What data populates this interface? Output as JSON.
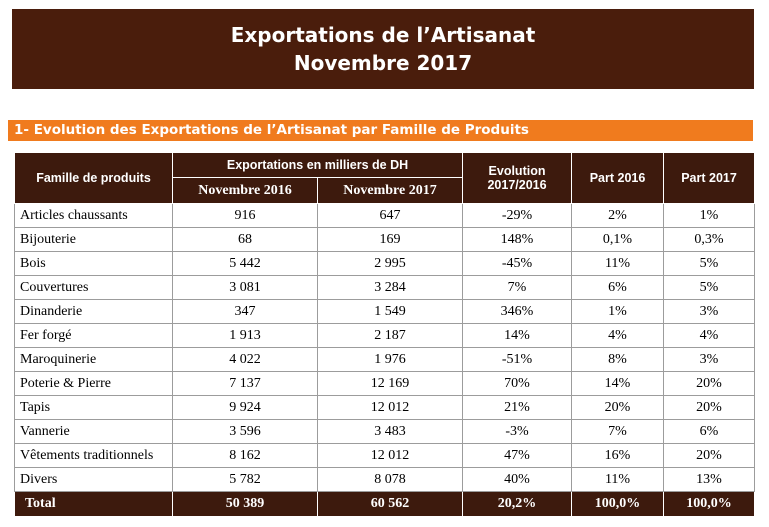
{
  "banner": {
    "line1": "Exportations de l’Artisanat",
    "line2": "Novembre 2017"
  },
  "section_title": "1- Evolution des Exportations de l’Artisanat par Famille  de Produits",
  "table": {
    "headers": {
      "famille": "Famille de produits",
      "exportations": "Exportations en milliers de DH",
      "nov2016": "Novembre 2016",
      "nov2017": "Novembre 2017",
      "evolution_line1": "Evolution",
      "evolution_line2": "2017/2016",
      "part2016": "Part  2016",
      "part2017": "Part  2017"
    },
    "rows": [
      {
        "famille": "Articles chaussants",
        "nov2016": "916",
        "nov2017": "647",
        "evolution": "-29%",
        "part2016": "2%",
        "part2017": "1%"
      },
      {
        "famille": "Bijouterie",
        "nov2016": "68",
        "nov2017": "169",
        "evolution": "148%",
        "part2016": "0,1%",
        "part2017": "0,3%"
      },
      {
        "famille": "Bois",
        "nov2016": "5 442",
        "nov2017": "2 995",
        "evolution": "-45%",
        "part2016": "11%",
        "part2017": "5%"
      },
      {
        "famille": "Couvertures",
        "nov2016": "3 081",
        "nov2017": "3 284",
        "evolution": "7%",
        "part2016": "6%",
        "part2017": "5%"
      },
      {
        "famille": "Dinanderie",
        "nov2016": "347",
        "nov2017": "1 549",
        "evolution": "346%",
        "part2016": "1%",
        "part2017": "3%"
      },
      {
        "famille": "Fer forgé",
        "nov2016": "1 913",
        "nov2017": "2 187",
        "evolution": "14%",
        "part2016": "4%",
        "part2017": "4%"
      },
      {
        "famille": "Maroquinerie",
        "nov2016": "4 022",
        "nov2017": "1 976",
        "evolution": "-51%",
        "part2016": "8%",
        "part2017": "3%"
      },
      {
        "famille": "Poterie & Pierre",
        "nov2016": "7 137",
        "nov2017": "12 169",
        "evolution": "70%",
        "part2016": "14%",
        "part2017": "20%"
      },
      {
        "famille": "Tapis",
        "nov2016": "9 924",
        "nov2017": "12 012",
        "evolution": "21%",
        "part2016": "20%",
        "part2017": "20%"
      },
      {
        "famille": "Vannerie",
        "nov2016": "3 596",
        "nov2017": "3 483",
        "evolution": "-3%",
        "part2016": "7%",
        "part2017": "6%"
      },
      {
        "famille": "Vêtements traditionnels",
        "nov2016": "8 162",
        "nov2017": "12 012",
        "evolution": "47%",
        "part2016": "16%",
        "part2017": "20%"
      },
      {
        "famille": "Divers",
        "nov2016": "5 782",
        "nov2017": "8 078",
        "evolution": "40%",
        "part2016": "11%",
        "part2017": "13%"
      }
    ],
    "total": {
      "famille": "Total",
      "nov2016": "50 389",
      "nov2017": "60 562",
      "evolution": "20,2%",
      "part2016": "100,0%",
      "part2017": "100,0%"
    }
  },
  "colors": {
    "banner_bg": "#4a1d0c",
    "section_bar": "#f07b1e",
    "header_bg": "#3d1a0d"
  }
}
